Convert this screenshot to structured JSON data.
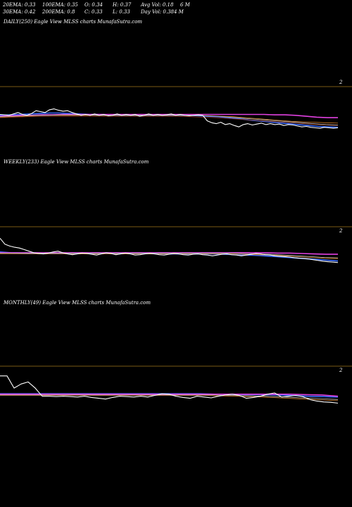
{
  "header": {
    "ema20": "20EMA: 0.33",
    "ema100": "100EMA: 0.35",
    "open": "O: 0.34",
    "high": "H: 0.37",
    "avg_vol": "Avg Vol: 0.18",
    "m_suffix": "6  M",
    "ema30": "30EMA: 0.42",
    "ema200": "200EMA: 0.8",
    "close": "C: 0.33",
    "low": "L: 0.33",
    "day_vol": "Day Vol: 0.384  M"
  },
  "colors": {
    "background": "#000000",
    "divider": "#7a5a14",
    "price": "#ffffff",
    "ema_blue": "#3a6cff",
    "ema_pink": "#e040e0",
    "ema_orange": "#d9822b",
    "ema_gray": "#bbbbbb",
    "ema_dark_red": "#9a3a1a"
  },
  "chart_data": [
    {
      "type": "line",
      "title": "DAILY(250) Eagle  View  MLSS charts MunafaSutra.com",
      "ytick": "2",
      "series": [
        {
          "color_key": "price",
          "values": [
            0.62,
            0.61,
            0.6,
            0.63,
            0.66,
            0.62,
            0.6,
            0.64,
            0.7,
            0.68,
            0.66,
            0.72,
            0.74,
            0.71,
            0.69,
            0.7,
            0.66,
            0.63,
            0.6,
            0.62,
            0.6,
            0.63,
            0.6,
            0.62,
            0.59,
            0.6,
            0.63,
            0.6,
            0.62,
            0.6,
            0.62,
            0.58,
            0.6,
            0.63,
            0.6,
            0.62,
            0.6,
            0.61,
            0.63,
            0.6,
            0.62,
            0.6,
            0.59,
            0.6,
            0.61,
            0.6,
            0.48,
            0.44,
            0.42,
            0.45,
            0.4,
            0.42,
            0.38,
            0.35,
            0.4,
            0.42,
            0.39,
            0.41,
            0.43,
            0.4,
            0.42,
            0.4,
            0.41,
            0.38,
            0.4,
            0.39,
            0.37,
            0.35,
            0.36,
            0.34,
            0.33,
            0.32,
            0.34,
            0.33,
            0.32,
            0.33
          ]
        },
        {
          "color_key": "ema_blue",
          "values": [
            0.6,
            0.61,
            0.62,
            0.63,
            0.64,
            0.65,
            0.65,
            0.64,
            0.63,
            0.62,
            0.62,
            0.61,
            0.6,
            0.6,
            0.6,
            0.6,
            0.6,
            0.6,
            0.6,
            0.6,
            0.59,
            0.58,
            0.57,
            0.55,
            0.53,
            0.5,
            0.48,
            0.46,
            0.44,
            0.42,
            0.4,
            0.38,
            0.36,
            0.35,
            0.34
          ]
        },
        {
          "color_key": "ema_pink",
          "values": [
            0.58,
            0.59,
            0.6,
            0.6,
            0.61,
            0.61,
            0.62,
            0.62,
            0.62,
            0.62,
            0.62,
            0.62,
            0.62,
            0.62,
            0.62,
            0.62,
            0.62,
            0.62,
            0.62,
            0.62,
            0.62,
            0.62,
            0.62,
            0.62,
            0.62,
            0.62,
            0.61,
            0.61,
            0.6,
            0.58,
            0.56,
            0.55,
            0.55
          ]
        },
        {
          "color_key": "ema_orange",
          "values": [
            0.56,
            0.57,
            0.58,
            0.59,
            0.6,
            0.6,
            0.6,
            0.6,
            0.6,
            0.6,
            0.6,
            0.6,
            0.6,
            0.6,
            0.6,
            0.6,
            0.6,
            0.6,
            0.59,
            0.58,
            0.57,
            0.55,
            0.53,
            0.51,
            0.49,
            0.47,
            0.46,
            0.45,
            0.44,
            0.43
          ]
        },
        {
          "color_key": "ema_dark_red",
          "values": [
            0.55,
            0.56,
            0.57,
            0.58,
            0.58,
            0.58,
            0.58,
            0.58,
            0.58,
            0.58,
            0.58,
            0.58,
            0.58,
            0.58,
            0.57,
            0.56,
            0.55,
            0.53,
            0.51,
            0.49,
            0.47,
            0.45,
            0.43,
            0.41,
            0.39,
            0.38
          ]
        },
        {
          "color_key": "ema_gray",
          "values": [
            0.57,
            0.58,
            0.59,
            0.6,
            0.6,
            0.61,
            0.61,
            0.61,
            0.6,
            0.6,
            0.6,
            0.6,
            0.6,
            0.6,
            0.6,
            0.6,
            0.6,
            0.59,
            0.58,
            0.56,
            0.54,
            0.52,
            0.5,
            0.48,
            0.46,
            0.44,
            0.42,
            0.4,
            0.39
          ]
        }
      ]
    },
    {
      "type": "line",
      "title": "WEEKLY(233) Eagle  View  MLSS charts MunafaSutra.com",
      "ytick": "2",
      "series": [
        {
          "color_key": "price",
          "values": [
            0.95,
            0.8,
            0.75,
            0.72,
            0.7,
            0.66,
            0.62,
            0.58,
            0.56,
            0.55,
            0.57,
            0.6,
            0.62,
            0.58,
            0.55,
            0.53,
            0.55,
            0.57,
            0.56,
            0.54,
            0.52,
            0.55,
            0.58,
            0.56,
            0.53,
            0.55,
            0.57,
            0.55,
            0.52,
            0.53,
            0.55,
            0.56,
            0.55,
            0.53,
            0.52,
            0.54,
            0.56,
            0.55,
            0.53,
            0.52,
            0.54,
            0.55,
            0.53,
            0.52,
            0.5,
            0.52,
            0.54,
            0.55,
            0.53,
            0.52,
            0.5,
            0.52,
            0.54,
            0.56,
            0.55,
            0.53,
            0.52,
            0.5,
            0.49,
            0.48,
            0.47,
            0.45,
            0.44,
            0.43,
            0.42,
            0.4,
            0.38,
            0.36,
            0.35,
            0.34,
            0.33
          ]
        },
        {
          "color_key": "ema_blue",
          "values": [
            0.6,
            0.58,
            0.57,
            0.56,
            0.56,
            0.56,
            0.56,
            0.56,
            0.56,
            0.56,
            0.56,
            0.56,
            0.56,
            0.56,
            0.56,
            0.55,
            0.55,
            0.55,
            0.55,
            0.55,
            0.54,
            0.53,
            0.52,
            0.51,
            0.49,
            0.47,
            0.45,
            0.43,
            0.41,
            0.39,
            0.37
          ]
        },
        {
          "color_key": "ema_pink",
          "values": [
            0.58,
            0.58,
            0.58,
            0.58,
            0.58,
            0.58,
            0.58,
            0.58,
            0.58,
            0.58,
            0.58,
            0.58,
            0.58,
            0.58,
            0.58,
            0.58,
            0.58,
            0.58,
            0.58,
            0.58,
            0.58,
            0.58,
            0.58,
            0.57,
            0.57,
            0.56,
            0.55,
            0.54,
            0.54
          ]
        },
        {
          "color_key": "ema_orange",
          "values": [
            0.55,
            0.55,
            0.55,
            0.55,
            0.55,
            0.55,
            0.55,
            0.55,
            0.55,
            0.55,
            0.55,
            0.55,
            0.55,
            0.55,
            0.55,
            0.55,
            0.55,
            0.55,
            0.54,
            0.53,
            0.52,
            0.5,
            0.48,
            0.46,
            0.44,
            0.43
          ]
        },
        {
          "color_key": "ema_gray",
          "values": [
            0.57,
            0.57,
            0.57,
            0.57,
            0.57,
            0.57,
            0.57,
            0.57,
            0.57,
            0.57,
            0.57,
            0.57,
            0.57,
            0.57,
            0.57,
            0.57,
            0.57,
            0.57,
            0.56,
            0.55,
            0.54,
            0.52,
            0.5,
            0.48,
            0.46,
            0.45
          ]
        }
      ]
    },
    {
      "type": "line",
      "title": "MONTHLY(49) Eagle  View  MLSS charts MunafaSutra.com",
      "ytick": "2",
      "series": [
        {
          "color_key": "price",
          "values": [
            1.0,
            1.0,
            0.7,
            0.8,
            0.85,
            0.7,
            0.5,
            0.5,
            0.49,
            0.5,
            0.49,
            0.48,
            0.5,
            0.47,
            0.45,
            0.43,
            0.47,
            0.5,
            0.49,
            0.48,
            0.5,
            0.48,
            0.52,
            0.56,
            0.55,
            0.5,
            0.47,
            0.45,
            0.5,
            0.48,
            0.46,
            0.5,
            0.53,
            0.55,
            0.52,
            0.45,
            0.47,
            0.5,
            0.55,
            0.58,
            0.48,
            0.5,
            0.52,
            0.49,
            0.42,
            0.38,
            0.36,
            0.35,
            0.33
          ]
        },
        {
          "color_key": "ema_blue",
          "values": [
            0.56,
            0.56,
            0.56,
            0.56,
            0.56,
            0.56,
            0.56,
            0.56,
            0.56,
            0.56,
            0.56,
            0.56,
            0.56,
            0.56,
            0.55,
            0.55,
            0.54,
            0.54,
            0.53,
            0.52,
            0.5,
            0.49,
            0.48
          ]
        },
        {
          "color_key": "ema_pink",
          "values": [
            0.55,
            0.55,
            0.55,
            0.55,
            0.55,
            0.55,
            0.55,
            0.55,
            0.55,
            0.55,
            0.55,
            0.55,
            0.55,
            0.55,
            0.55,
            0.55,
            0.55,
            0.55,
            0.55,
            0.54,
            0.53,
            0.5
          ]
        },
        {
          "color_key": "ema_orange",
          "values": [
            0.52,
            0.52,
            0.52,
            0.52,
            0.52,
            0.52,
            0.52,
            0.52,
            0.52,
            0.52,
            0.52,
            0.52,
            0.52,
            0.51,
            0.5,
            0.49,
            0.47,
            0.45,
            0.43,
            0.41,
            0.39
          ]
        },
        {
          "color_key": "ema_gray",
          "values": [
            0.53,
            0.53,
            0.53,
            0.53,
            0.53,
            0.53,
            0.53,
            0.53,
            0.53,
            0.53,
            0.53,
            0.53,
            0.53,
            0.52,
            0.51,
            0.5,
            0.48,
            0.46,
            0.44,
            0.42
          ]
        }
      ]
    }
  ]
}
